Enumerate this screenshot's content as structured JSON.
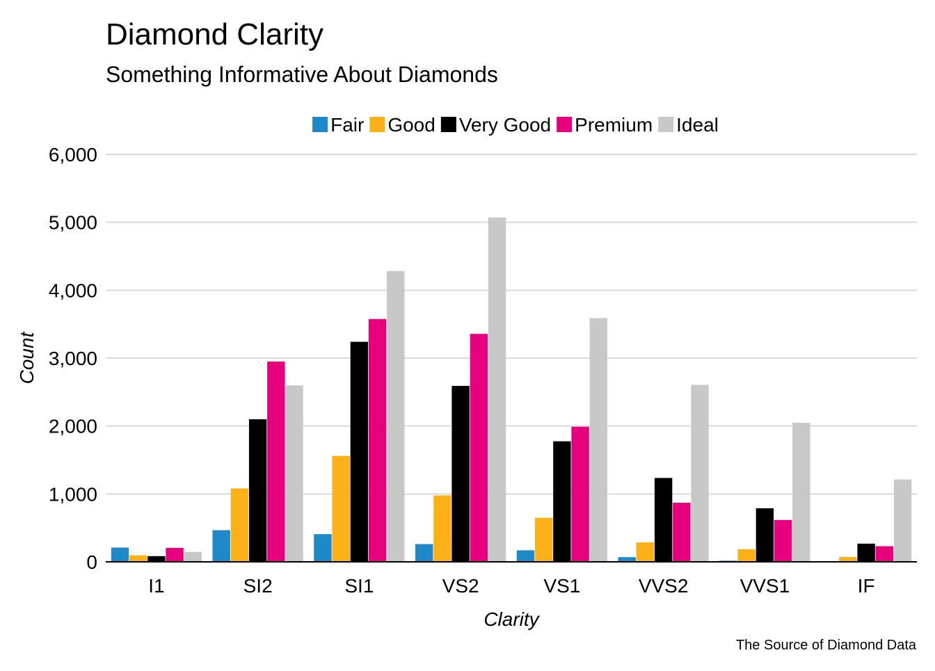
{
  "chart_data": {
    "type": "bar",
    "title": "Diamond Clarity",
    "subtitle": "Something Informative About Diamonds",
    "xlabel": "Clarity",
    "ylabel": "Count",
    "caption": "The Source of Diamond Data",
    "categories": [
      "I1",
      "SI2",
      "SI1",
      "VS2",
      "VS1",
      "VVS2",
      "VVS1",
      "IF"
    ],
    "series": [
      {
        "name": "Fair",
        "color": "#1f88c8",
        "values": [
          210,
          466,
          408,
          261,
          170,
          69,
          17,
          9
        ]
      },
      {
        "name": "Good",
        "color": "#fbb117",
        "values": [
          96,
          1081,
          1560,
          978,
          648,
          286,
          186,
          71
        ]
      },
      {
        "name": "Very Good",
        "color": "#000000",
        "values": [
          84,
          2100,
          3240,
          2591,
          1775,
          1235,
          789,
          268
        ]
      },
      {
        "name": "Premium",
        "color": "#e6007e",
        "values": [
          205,
          2949,
          3575,
          3357,
          1989,
          870,
          616,
          230
        ]
      },
      {
        "name": "Ideal",
        "color": "#c8c8c8",
        "values": [
          146,
          2598,
          4282,
          5071,
          3589,
          2606,
          2047,
          1212
        ]
      }
    ],
    "ylim": [
      0,
      6000
    ],
    "yticks": [
      0,
      1000,
      2000,
      3000,
      4000,
      5000,
      6000
    ],
    "ytick_labels": [
      "0",
      "1,000",
      "2,000",
      "3,000",
      "4,000",
      "5,000",
      "6,000"
    ],
    "grid": "horizontal",
    "legend_position": "top"
  }
}
